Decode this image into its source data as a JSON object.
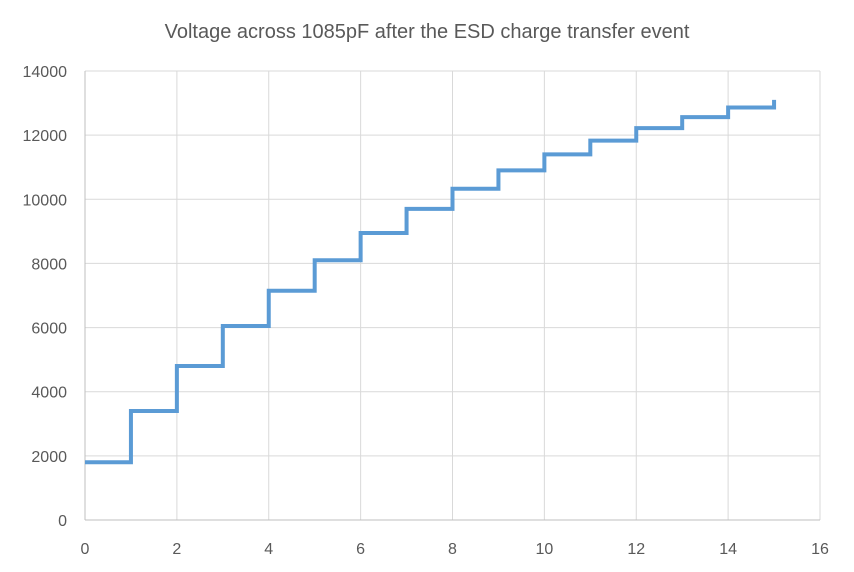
{
  "chart_data": {
    "type": "line",
    "title": "Voltage across 1085pF after the ESD charge transfer event",
    "xlabel": "",
    "ylabel": "",
    "xlim": [
      0,
      16
    ],
    "ylim": [
      0,
      14000
    ],
    "x_ticks": [
      0,
      2,
      4,
      6,
      8,
      10,
      12,
      14,
      16
    ],
    "y_ticks": [
      0,
      2000,
      4000,
      6000,
      8000,
      10000,
      12000,
      14000
    ],
    "grid": true,
    "legend": "none",
    "series": [
      {
        "color": "#5b9bd5",
        "step": true,
        "x": [
          0,
          1,
          2,
          3,
          4,
          5,
          6,
          7,
          8,
          9,
          10,
          11,
          12,
          13,
          14,
          15
        ],
        "values": [
          1800,
          3400,
          4800,
          6050,
          7150,
          8100,
          8950,
          9700,
          10330,
          10900,
          11400,
          11830,
          12220,
          12560,
          12860,
          13100
        ]
      }
    ]
  }
}
